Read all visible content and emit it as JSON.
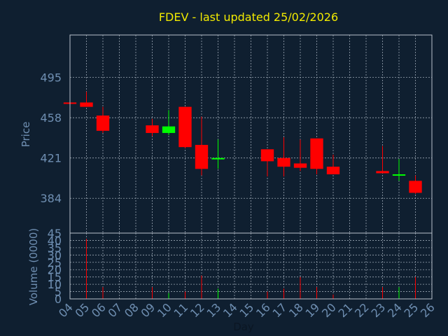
{
  "chart_data": {
    "type": "candlestick",
    "title": "FDEV - last updated 25/02/2026",
    "xlabel": "Day",
    "ylabel": "Price",
    "volume_ylabel": "Volume (0000)",
    "price_ticks": [
      495,
      458,
      421,
      384
    ],
    "price_ylim": [
      352,
      534
    ],
    "volume_ticks": [
      0,
      5,
      10,
      15,
      20,
      25,
      30,
      35,
      40,
      45
    ],
    "volume_ylim": [
      0,
      45
    ],
    "x_ticks": [
      "04",
      "05",
      "06",
      "07",
      "08",
      "09",
      "10",
      "11",
      "12",
      "13",
      "14",
      "15",
      "16",
      "17",
      "18",
      "19",
      "20",
      "21",
      "22",
      "23",
      "24",
      "25",
      "26"
    ],
    "grid": true,
    "candles": [
      {
        "day": "04",
        "open": 472,
        "high": 472,
        "low": 471,
        "close": 471,
        "volume": 0
      },
      {
        "day": "05",
        "open": 472,
        "high": 482,
        "low": 468,
        "close": 468,
        "volume": 41
      },
      {
        "day": "06",
        "open": 460,
        "high": 468,
        "low": 444,
        "close": 446,
        "volume": 8
      },
      {
        "day": "09",
        "open": 451,
        "high": 457,
        "low": 441,
        "close": 444,
        "volume": 8
      },
      {
        "day": "10",
        "open": 444,
        "high": 465,
        "low": 442,
        "close": 450,
        "volume": 4
      },
      {
        "day": "11",
        "open": 468,
        "high": 468,
        "low": 430,
        "close": 431,
        "volume": 5
      },
      {
        "day": "12",
        "open": 433,
        "high": 459,
        "low": 405,
        "close": 411,
        "volume": 16
      },
      {
        "day": "13",
        "open": 420,
        "high": 438,
        "low": 411,
        "close": 421,
        "volume": 7
      },
      {
        "day": "16",
        "open": 429,
        "high": 429,
        "low": 404,
        "close": 418,
        "volume": 5
      },
      {
        "day": "17",
        "open": 421,
        "high": 440,
        "low": 404,
        "close": 413,
        "volume": 7
      },
      {
        "day": "18",
        "open": 416,
        "high": 438,
        "low": 409,
        "close": 412,
        "volume": 15
      },
      {
        "day": "19",
        "open": 439,
        "high": 439,
        "low": 406,
        "close": 411,
        "volume": 8
      },
      {
        "day": "20",
        "open": 413,
        "high": 424,
        "low": 406,
        "close": 406,
        "volume": 3
      },
      {
        "day": "23",
        "open": 409,
        "high": 432,
        "low": 407,
        "close": 407,
        "volume": 8
      },
      {
        "day": "24",
        "open": 405,
        "high": 420,
        "low": 400,
        "close": 406,
        "volume": 8
      },
      {
        "day": "25",
        "open": 400,
        "high": 405,
        "low": 388,
        "close": 389,
        "volume": 15
      }
    ],
    "colors": {
      "background": "#0f1f30",
      "grid": "#9aa6b2",
      "axis": "#b8c2cc",
      "down": "#ff0000",
      "up": "#00ff00",
      "title": "#f2ea00",
      "labels": "#6f8fb2"
    }
  }
}
